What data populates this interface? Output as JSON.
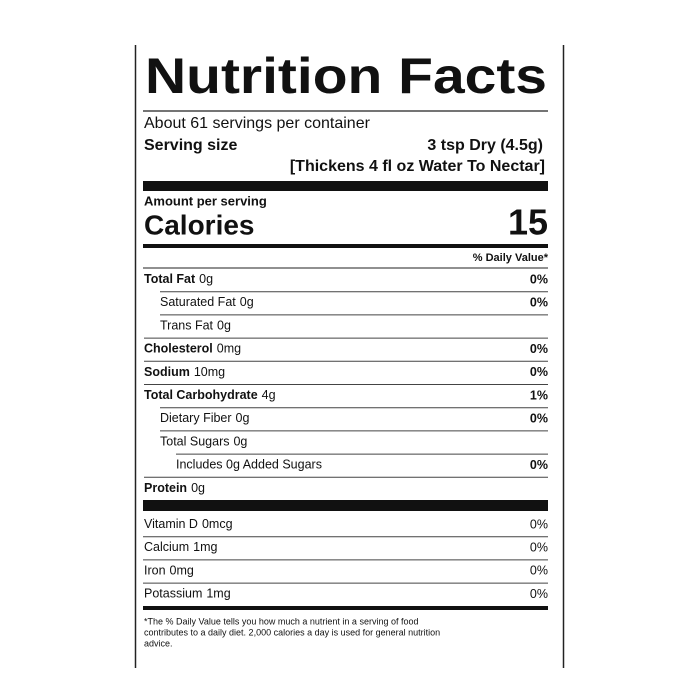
{
  "label": {
    "title": "Nutrition Facts",
    "servings": "About 61 servings per container",
    "serving_size_label": "Serving size",
    "serving_size_value": "3 tsp Dry (4.5g)",
    "serving_note": "[Thickens 4 fl oz Water To Nectar]",
    "amount_per_serving": "Amount per serving",
    "calories_label": "Calories",
    "calories_value": "15",
    "daily_value_header": "% Daily Value*",
    "nutrients": [
      {
        "name": "Total Fat",
        "amount": "0g",
        "dv": "0%",
        "sub": [
          {
            "name": "Saturated Fat",
            "amount": "0g",
            "dv": "0%"
          },
          {
            "name": "Trans Fat",
            "amount": "0g"
          }
        ]
      },
      {
        "name": "Cholesterol",
        "amount": "0mg",
        "dv": "0%"
      },
      {
        "name": "Sodium",
        "amount": "10mg",
        "dv": "0%"
      },
      {
        "name": "Total Carbohydrate",
        "amount": "4g",
        "dv": "1%",
        "sub": [
          {
            "name": "Dietary Fiber",
            "amount": "0g",
            "dv": "0%"
          },
          {
            "name": "Total Sugars",
            "amount": "0g",
            "sub": [
              {
                "name": "Includes 0g Added Sugars",
                "dv": "0%"
              }
            ]
          }
        ]
      },
      {
        "name": "Protein",
        "amount": "0g"
      }
    ],
    "vitamins": [
      {
        "name": "Vitamin D",
        "amount": "0mcg",
        "dv": "0%"
      },
      {
        "name": "Calcium",
        "amount": "1mg",
        "dv": "0%"
      },
      {
        "name": "Iron",
        "amount": "0mg",
        "dv": "0%"
      },
      {
        "name": "Potassium",
        "amount": "1mg",
        "dv": "0%"
      }
    ],
    "footnote": [
      "*The % Daily Value tells you how much a nutrient in a serving of food",
      "contributes to a daily diet. 2,000 calories a day is used for general nutrition",
      "advice."
    ]
  }
}
